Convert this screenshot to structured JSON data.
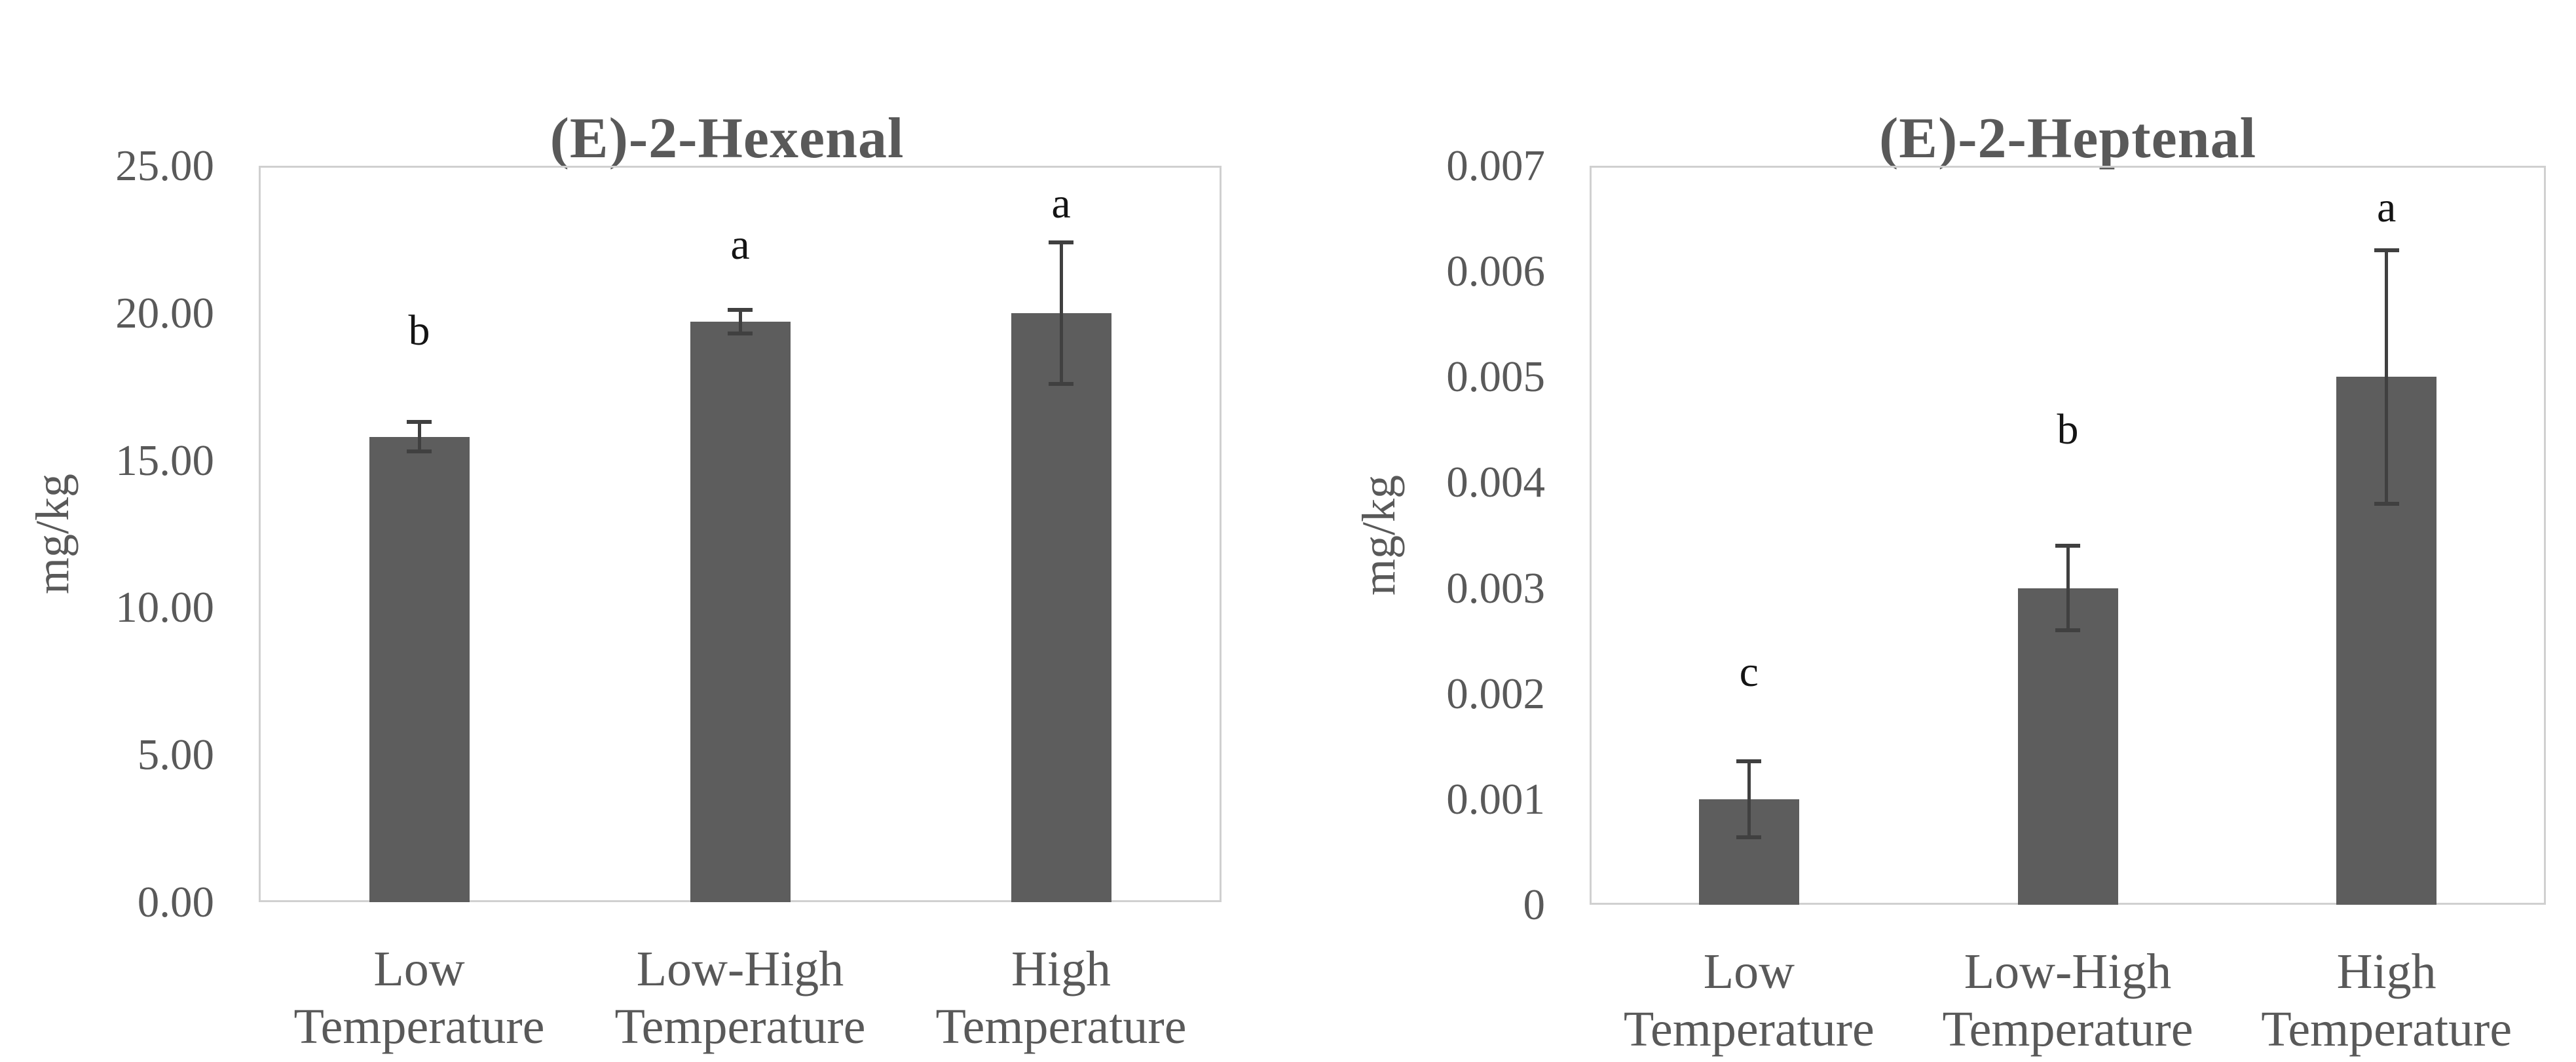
{
  "figure": {
    "background_color": "#ffffff",
    "text_color": "#595959",
    "bar_color": "#5d5d5d",
    "error_bar_color": "#404040",
    "sig_letter_color": "#141414",
    "plot_border_color": "#d0d0d0"
  },
  "chart_data": [
    {
      "type": "bar",
      "title": "(E)-2-Hexenal",
      "ylabel": "mg/kg",
      "xlabel": "",
      "categories": [
        "Low Temperature",
        "Low-High Temperature",
        "High Temperature"
      ],
      "category_lines": [
        [
          "Low",
          "Temperature"
        ],
        [
          "Low-High",
          "Temperature"
        ],
        [
          "High",
          "Temperature"
        ]
      ],
      "values": [
        15.8,
        19.7,
        20.0
      ],
      "error_up": [
        0.5,
        0.4,
        2.4
      ],
      "error_down": [
        0.5,
        0.4,
        2.4
      ],
      "sig_letters": [
        "b",
        "a",
        "a"
      ],
      "sig_letter_y": [
        19.4,
        22.3,
        23.7
      ],
      "ylim": [
        0,
        25
      ],
      "ytick_values": [
        0,
        5,
        10,
        15,
        20,
        25
      ],
      "ytick_labels": [
        "0.00",
        "5.00",
        "10.00",
        "15.00",
        "20.00",
        "25.00"
      ],
      "grid": false,
      "legend": false
    },
    {
      "type": "bar",
      "title": "(E)-2-Heptenal",
      "ylabel": "mg/kg",
      "xlabel": "",
      "categories": [
        "Low Temperature",
        "Low-High Temperature",
        "High Temperature"
      ],
      "category_lines": [
        [
          "Low",
          "Temperature"
        ],
        [
          "Low-High",
          "Temperature"
        ],
        [
          "High",
          "Temperature"
        ]
      ],
      "values": [
        0.001,
        0.003,
        0.005
      ],
      "error_up": [
        0.00036,
        0.0004,
        0.0012
      ],
      "error_down": [
        0.00036,
        0.0004,
        0.0012
      ],
      "sig_letters": [
        "c",
        "b",
        "a"
      ],
      "sig_letter_y": [
        0.0022,
        0.0045,
        0.0066
      ],
      "ylim": [
        0,
        0.007
      ],
      "ytick_values": [
        0,
        0.001,
        0.002,
        0.003,
        0.004,
        0.005,
        0.006,
        0.007
      ],
      "ytick_labels": [
        "0",
        "0.001",
        "0.002",
        "0.003",
        "0.004",
        "0.005",
        "0.006",
        "0.007"
      ],
      "grid": false,
      "legend": false
    }
  ]
}
